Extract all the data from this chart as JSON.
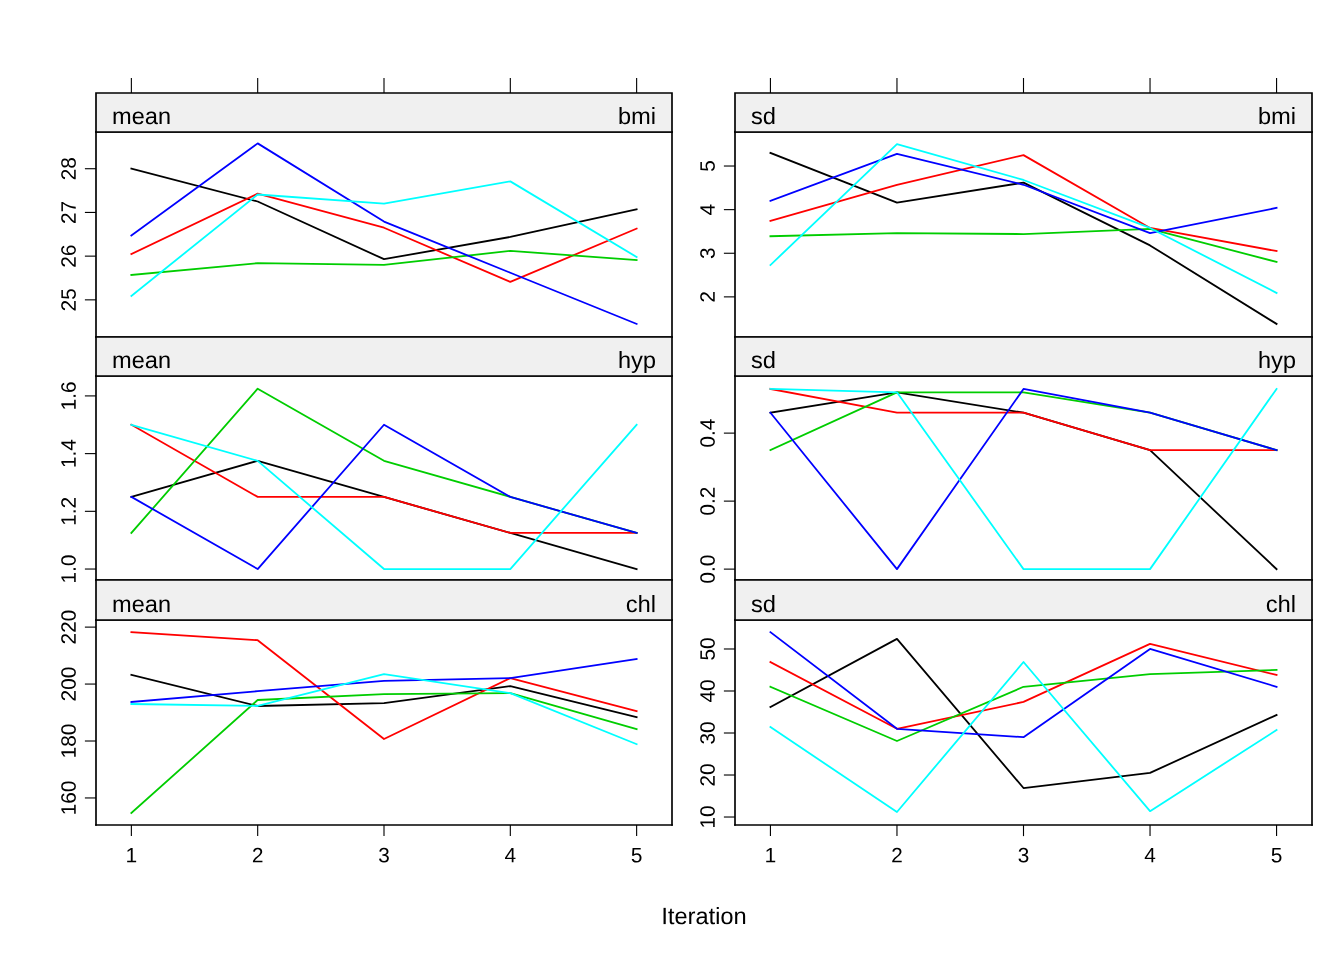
{
  "chart_data": [
    {
      "type": "line",
      "annotations": [
        "mean",
        "bmi"
      ],
      "x": [
        1,
        2,
        3,
        4,
        5
      ],
      "xlim": [
        0.72,
        5.28
      ],
      "xticks": [
        1,
        2,
        3,
        4,
        5
      ],
      "ylim": [
        24.15,
        28.84
      ],
      "yticks": [
        25,
        26,
        27,
        28
      ],
      "tick_labels": "y",
      "series": [
        {
          "color": "#000000",
          "values": [
            28.0,
            27.25,
            25.93,
            26.44,
            27.07
          ]
        },
        {
          "color": "#ff0000",
          "values": [
            26.05,
            27.43,
            26.65,
            25.41,
            26.63
          ]
        },
        {
          "color": "#00cd00",
          "values": [
            25.57,
            25.84,
            25.8,
            26.12,
            25.91
          ]
        },
        {
          "color": "#0000ff",
          "values": [
            26.47,
            28.58,
            26.79,
            25.62,
            24.45
          ]
        },
        {
          "color": "#00ffff",
          "values": [
            25.09,
            27.41,
            27.2,
            27.71,
            25.98
          ]
        }
      ]
    },
    {
      "type": "line",
      "annotations": [
        "sd",
        "bmi"
      ],
      "x": [
        1,
        2,
        3,
        4,
        5
      ],
      "xlim": [
        0.72,
        5.28
      ],
      "xticks": [
        1,
        2,
        3,
        4,
        5
      ],
      "ylim": [
        1.08,
        5.78
      ],
      "yticks": [
        2,
        3,
        4,
        5
      ],
      "tick_labels": "y",
      "series": [
        {
          "color": "#000000",
          "values": [
            5.3,
            4.16,
            4.62,
            3.18,
            1.38
          ]
        },
        {
          "color": "#ff0000",
          "values": [
            3.74,
            4.57,
            5.25,
            3.58,
            3.05
          ]
        },
        {
          "color": "#00cd00",
          "values": [
            3.39,
            3.46,
            3.44,
            3.56,
            2.8
          ]
        },
        {
          "color": "#0000ff",
          "values": [
            4.2,
            5.28,
            4.57,
            3.46,
            4.04
          ]
        },
        {
          "color": "#00ffff",
          "values": [
            2.73,
            5.5,
            4.68,
            3.58,
            2.09
          ]
        }
      ]
    },
    {
      "type": "line",
      "annotations": [
        "mean",
        "hyp"
      ],
      "x": [
        1,
        2,
        3,
        4,
        5
      ],
      "xlim": [
        0.72,
        5.28
      ],
      "xticks": [
        1,
        2,
        3,
        4,
        5
      ],
      "ylim": [
        0.962,
        1.669
      ],
      "yticks": [
        {
          "value": 1.0,
          "label": "1.0"
        },
        1.2,
        1.4,
        1.6
      ],
      "tick_labels": "y",
      "series": [
        {
          "color": "#000000",
          "values": [
            1.25,
            1.375,
            1.25,
            1.125,
            1.0
          ]
        },
        {
          "color": "#ff0000",
          "values": [
            1.5,
            1.25,
            1.25,
            1.125,
            1.125
          ]
        },
        {
          "color": "#00cd00",
          "values": [
            1.125,
            1.625,
            1.375,
            1.25,
            1.125
          ]
        },
        {
          "color": "#0000ff",
          "values": [
            1.25,
            1.0,
            1.5,
            1.25,
            1.125
          ]
        },
        {
          "color": "#00ffff",
          "values": [
            1.5,
            1.375,
            1.0,
            1.0,
            1.5
          ]
        }
      ]
    },
    {
      "type": "line",
      "annotations": [
        "sd",
        "hyp"
      ],
      "x": [
        1,
        2,
        3,
        4,
        5
      ],
      "xlim": [
        0.72,
        5.28
      ],
      "xticks": [
        1,
        2,
        3,
        4,
        5
      ],
      "ylim": [
        -0.032,
        0.568
      ],
      "yticks": [
        {
          "value": 0.0,
          "label": "0.0"
        },
        0.2,
        0.4
      ],
      "tick_labels": "y",
      "series": [
        {
          "color": "#000000",
          "values": [
            0.46,
            0.52,
            0.46,
            0.35,
            0.0
          ]
        },
        {
          "color": "#ff0000",
          "values": [
            0.53,
            0.46,
            0.46,
            0.35,
            0.35
          ]
        },
        {
          "color": "#00cd00",
          "values": [
            0.35,
            0.52,
            0.52,
            0.46,
            0.35
          ]
        },
        {
          "color": "#0000ff",
          "values": [
            0.46,
            0.0,
            0.53,
            0.46,
            0.35
          ]
        },
        {
          "color": "#00ffff",
          "values": [
            0.53,
            0.52,
            0.0,
            0.0,
            0.53
          ]
        }
      ]
    },
    {
      "type": "line",
      "annotations": [
        "mean",
        "chl"
      ],
      "xlabel": "Iteration",
      "x": [
        1,
        2,
        3,
        4,
        5
      ],
      "xlim": [
        0.72,
        5.28
      ],
      "xticks": [
        1,
        2,
        3,
        4,
        5
      ],
      "ylim": [
        150.5,
        222.5
      ],
      "yticks": [
        160,
        180,
        200,
        220
      ],
      "series": [
        {
          "color": "#000000",
          "values": [
            203.2,
            192.3,
            193.3,
            199.3,
            188.4
          ]
        },
        {
          "color": "#ff0000",
          "values": [
            218.2,
            215.4,
            180.7,
            202.1,
            190.5
          ]
        },
        {
          "color": "#00cd00",
          "values": [
            154.7,
            194.4,
            196.5,
            196.8,
            184.2
          ]
        },
        {
          "color": "#0000ff",
          "values": [
            193.7,
            197.5,
            201.1,
            202.1,
            208.8
          ]
        },
        {
          "color": "#00ffff",
          "values": [
            193.0,
            192.3,
            203.5,
            196.8,
            178.9
          ]
        }
      ]
    },
    {
      "type": "line",
      "annotations": [
        "sd",
        "chl"
      ],
      "x": [
        1,
        2,
        3,
        4,
        5
      ],
      "xlim": [
        0.72,
        5.28
      ],
      "xticks": [
        1,
        2,
        3,
        4,
        5
      ],
      "ylim": [
        8.1,
        56.9
      ],
      "yticks": [
        10,
        20,
        30,
        40,
        50
      ],
      "series": [
        {
          "color": "#000000",
          "values": [
            36.2,
            52.4,
            16.9,
            20.5,
            34.3
          ]
        },
        {
          "color": "#ff0000",
          "values": [
            46.9,
            31.0,
            37.4,
            51.2,
            43.8
          ]
        },
        {
          "color": "#00cd00",
          "values": [
            41.0,
            28.1,
            41.0,
            44.0,
            45.0
          ]
        },
        {
          "color": "#0000ff",
          "values": [
            54.0,
            31.0,
            29.0,
            50.0,
            41.0
          ]
        },
        {
          "color": "#00ffff",
          "values": [
            31.4,
            11.2,
            46.9,
            11.4,
            30.7
          ]
        }
      ]
    }
  ]
}
